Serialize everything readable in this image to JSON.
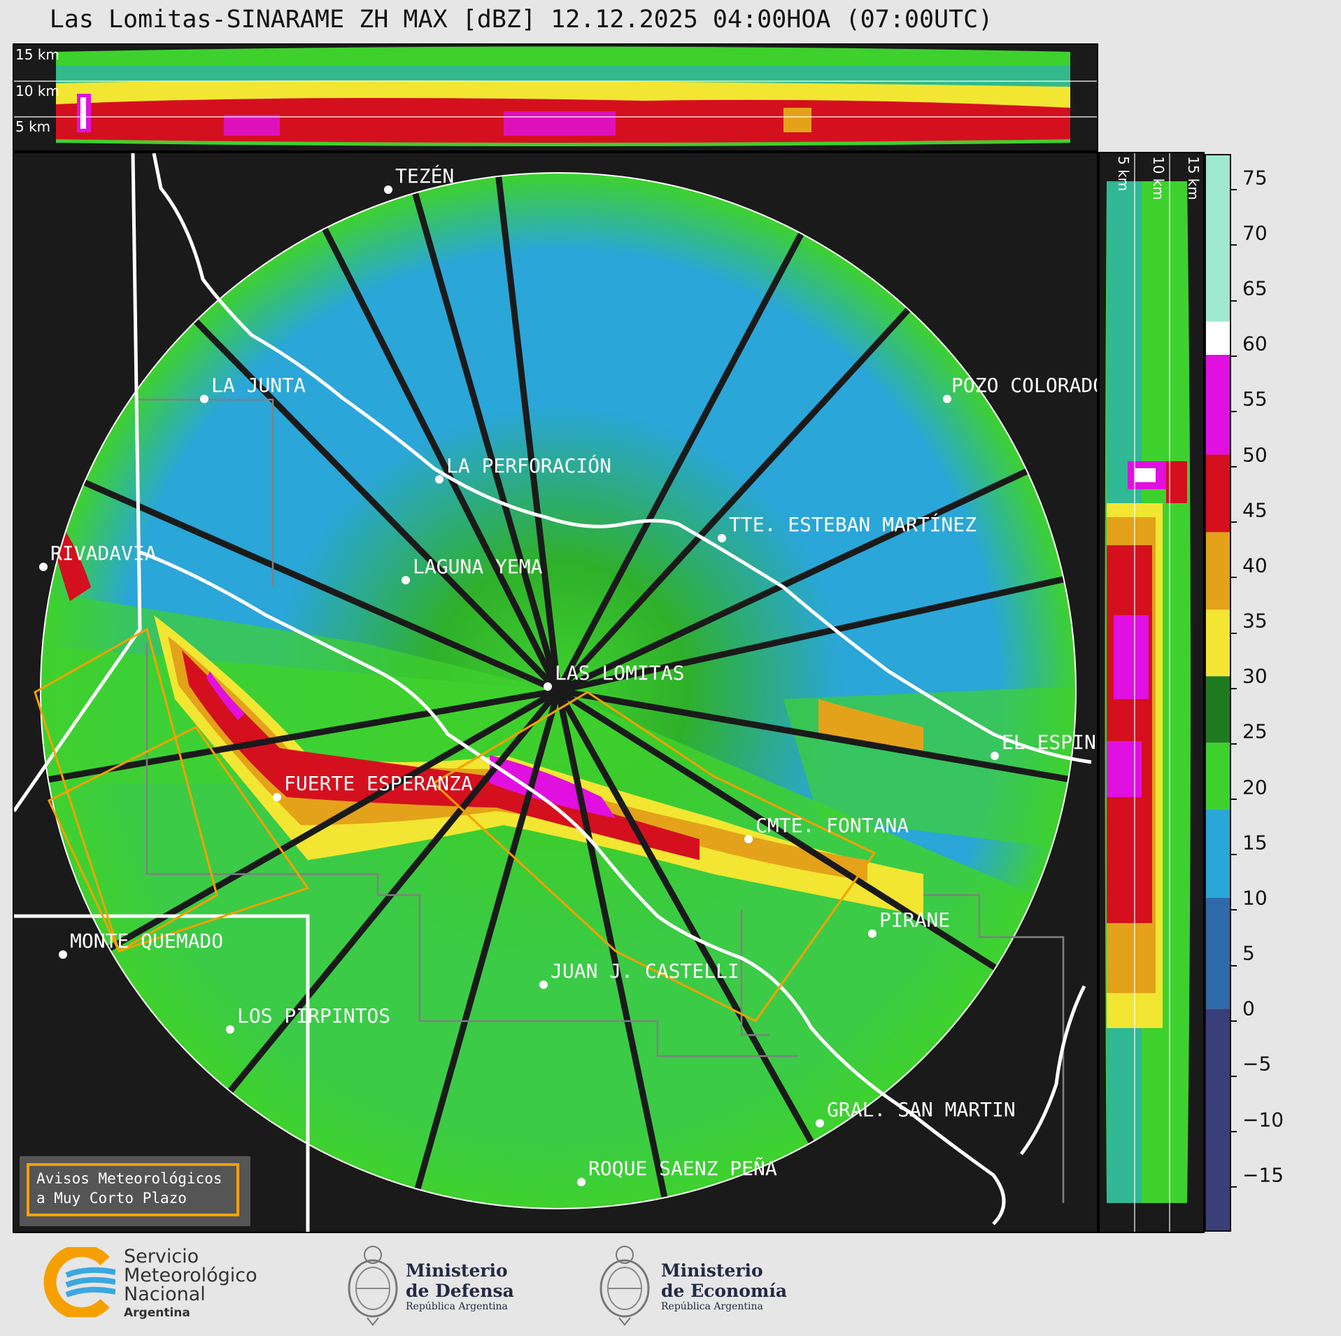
{
  "title": "Las Lomitas-SINARAME ZH MAX [dBZ] 12.12.2025 04:00HOA (07:00UTC)",
  "top_panel_labels": [
    "15 km",
    "10 km",
    "5 km"
  ],
  "side_panel_labels": [
    "5 km",
    "10 km",
    "15 km"
  ],
  "places": [
    {
      "name": "TEZÉN"
    },
    {
      "name": "LA JUNTA"
    },
    {
      "name": "POZO COLORADO"
    },
    {
      "name": "LA PERFORACIÓN"
    },
    {
      "name": "TTE. ESTEBAN MARTÍNEZ"
    },
    {
      "name": "RIVADAVIA"
    },
    {
      "name": "LAGUNA YEMA"
    },
    {
      "name": "LAS LOMITAS"
    },
    {
      "name": "EL ESPINILLO"
    },
    {
      "name": "FUERTE ESPERANZA"
    },
    {
      "name": "CMTE. FONTANA"
    },
    {
      "name": "PIRANE"
    },
    {
      "name": "MONTE QUEMADO"
    },
    {
      "name": "JUAN J. CASTELLI"
    },
    {
      "name": "LOS PIRPINTOS"
    },
    {
      "name": "GRAL. SAN MARTIN"
    },
    {
      "name": "ROQUE SAENZ PEÑA"
    }
  ],
  "colorbar": {
    "unit": "dBZ",
    "range": [
      -20,
      77
    ],
    "ticks": [
      "75",
      "70",
      "65",
      "60",
      "55",
      "50",
      "45",
      "40",
      "35",
      "30",
      "25",
      "20",
      "15",
      "10",
      "5",
      "0",
      "−5",
      "−10",
      "−15"
    ],
    "stops": [
      {
        "from": -20,
        "to": 0,
        "color": "#3a3f7a"
      },
      {
        "from": 0,
        "to": 10,
        "color": "#2e6aa8"
      },
      {
        "from": 10,
        "to": 18,
        "color": "#2aa6d8"
      },
      {
        "from": 18,
        "to": 24,
        "color": "#3ed12e"
      },
      {
        "from": 24,
        "to": 30,
        "color": "#1f7a1f"
      },
      {
        "from": 30,
        "to": 36,
        "color": "#f2e632"
      },
      {
        "from": 36,
        "to": 43,
        "color": "#e3a21a"
      },
      {
        "from": 43,
        "to": 50,
        "color": "#d4101e"
      },
      {
        "from": 50,
        "to": 59,
        "color": "#e010e0"
      },
      {
        "from": 59,
        "to": 62,
        "color": "#ffffff"
      },
      {
        "from": 62,
        "to": 77,
        "color": "#9fe8cf"
      }
    ]
  },
  "warning_box": {
    "line1": "Avisos Meteorológicos",
    "line2": "a Muy Corto Plazo"
  },
  "logos": {
    "smn": {
      "line1": "Servicio",
      "line2": "Meteorológico",
      "line3": "Nacional",
      "line4": "Argentina"
    },
    "defensa": {
      "line1": "Ministerio",
      "line2": "de Defensa",
      "line3": "República Argentina"
    },
    "economia": {
      "line1": "Ministerio",
      "line2": "de Economía",
      "line3": "República Argentina"
    }
  },
  "colors": {
    "background": "#1a1a1a",
    "border": "#ffffff",
    "warning": "#f5a000",
    "province": "#808080"
  }
}
